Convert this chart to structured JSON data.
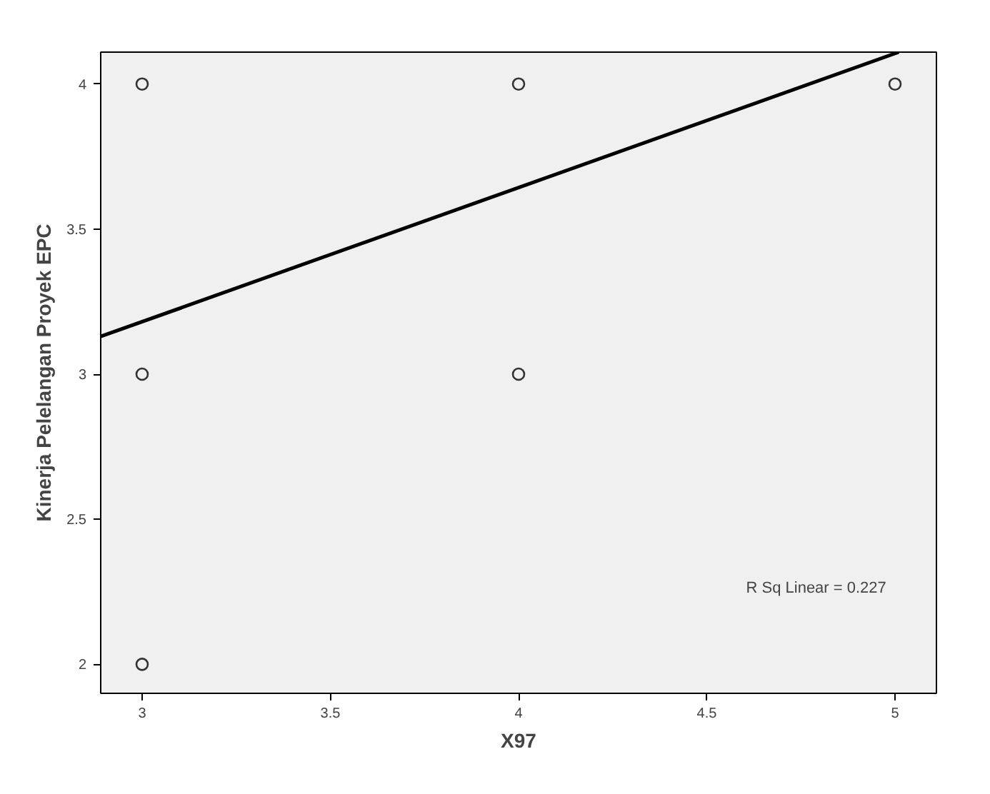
{
  "chart_data": {
    "type": "scatter",
    "xlabel": "X97",
    "ylabel": "Kinerja Pelelangan Proyek EPC",
    "x": [
      3,
      3,
      3,
      4,
      4,
      5
    ],
    "series": [
      {
        "color": "#333333",
        "marker": "circle",
        "values": [
          4,
          3,
          2,
          4,
          3,
          4
        ]
      },
      {
        "type": "line",
        "color": "#000000",
        "x": [
          2.89,
          5.01
        ],
        "values": [
          3.13,
          4.11
        ]
      }
    ],
    "xlim": [
      2.89,
      5.11
    ],
    "ylim": [
      1.9,
      4.11
    ],
    "xticks": [
      3,
      3.5,
      4,
      4.5,
      5
    ],
    "yticks": [
      2,
      2.5,
      3,
      3.5,
      4
    ],
    "grid": false,
    "line_style": "solid",
    "annotations": [
      "R Sq Linear = 0.227"
    ]
  }
}
